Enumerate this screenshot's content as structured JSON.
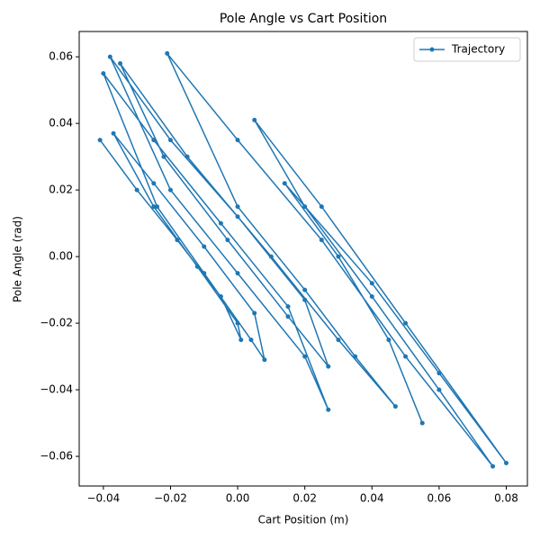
{
  "chart_data": {
    "type": "line",
    "title": "Pole Angle vs Cart Position",
    "xlabel": "Cart Position (m)",
    "ylabel": "Pole Angle (rad)",
    "x": [
      -0.041,
      -0.03,
      -0.018,
      -0.005,
      0.001,
      0.0,
      -0.012,
      -0.025,
      -0.037,
      -0.025,
      -0.01,
      0.005,
      0.008,
      0.004,
      -0.01,
      -0.024,
      -0.04,
      -0.025,
      -0.005,
      0.015,
      0.027,
      0.02,
      0.0,
      -0.02,
      -0.038,
      -0.02,
      0.0,
      0.02,
      0.027,
      0.015,
      -0.003,
      -0.022,
      -0.035,
      -0.015,
      0.01,
      0.03,
      0.047,
      0.035,
      0.02,
      0.0,
      -0.021,
      0.0,
      0.025,
      0.05,
      0.076,
      0.06,
      0.04,
      0.02,
      0.005,
      0.025,
      0.05,
      0.08,
      0.06,
      0.04,
      0.014,
      0.03,
      0.045,
      0.055
    ],
    "series": [
      {
        "name": "Trajectory",
        "color": "#1f77b4",
        "values": [
          0.035,
          0.02,
          0.005,
          -0.012,
          -0.025,
          -0.02,
          -0.003,
          0.015,
          0.037,
          0.022,
          0.003,
          -0.017,
          -0.031,
          -0.025,
          -0.005,
          0.015,
          0.055,
          0.035,
          0.01,
          -0.015,
          -0.046,
          -0.03,
          -0.005,
          0.02,
          0.06,
          0.035,
          0.012,
          -0.013,
          -0.033,
          -0.018,
          0.005,
          0.03,
          0.058,
          0.03,
          0.0,
          -0.025,
          -0.045,
          -0.03,
          -0.01,
          0.015,
          0.061,
          0.035,
          0.005,
          -0.03,
          -0.063,
          -0.04,
          -0.012,
          0.015,
          0.041,
          0.015,
          -0.02,
          -0.062,
          -0.035,
          -0.008,
          0.022,
          0.0,
          -0.025,
          -0.05
        ]
      }
    ],
    "xlim": [
      -0.0472,
      0.0863
    ],
    "ylim": [
      -0.0689,
      0.0676
    ],
    "xticks": [
      {
        "value": -0.04,
        "label": "−0.04"
      },
      {
        "value": -0.02,
        "label": "−0.02"
      },
      {
        "value": 0,
        "label": "0.00"
      },
      0.02,
      0.04,
      0.06,
      0.08
    ],
    "yticks": [
      {
        "value": -0.06,
        "label": "−0.06"
      },
      {
        "value": -0.04,
        "label": "−0.04"
      },
      {
        "value": -0.02,
        "label": "−0.02"
      },
      {
        "value": 0,
        "label": "0.00"
      },
      0.02,
      0.04,
      0.06
    ],
    "legend": "upper right"
  }
}
